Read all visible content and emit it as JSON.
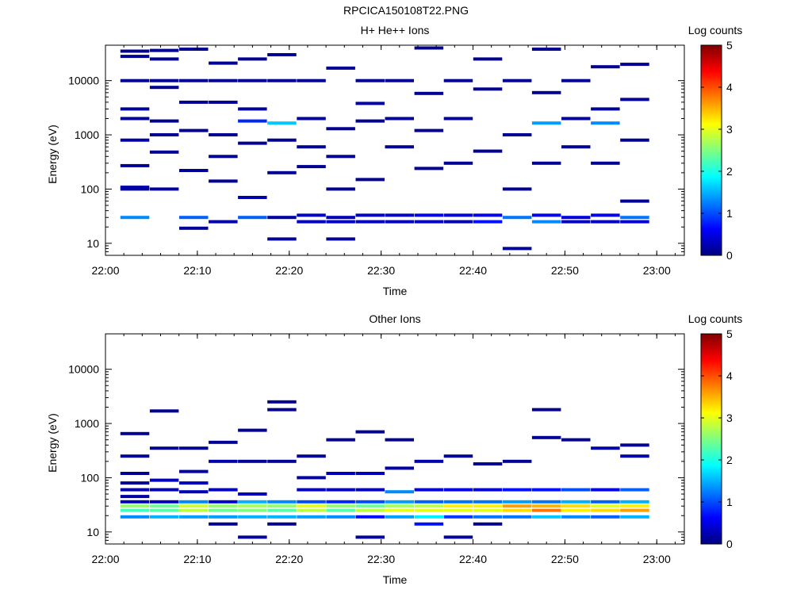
{
  "file_title": "RPCICA150108T22.PNG",
  "colorscale": {
    "stops": [
      "#00007f",
      "#0000ff",
      "#00ffff",
      "#ffff00",
      "#ff0000",
      "#7f0000"
    ]
  },
  "chart_data": [
    {
      "type": "heatmap",
      "title": "H+ He++ Ions",
      "xlabel": "Time",
      "ylabel": "Energy (eV)",
      "x_ticks": [
        "22:00",
        "22:10",
        "22:20",
        "22:30",
        "22:40",
        "22:50",
        "23:00"
      ],
      "x_range_minutes": [
        0,
        63
      ],
      "y_scale": "log",
      "y_range": [
        6,
        45000
      ],
      "y_ticks": [
        "10",
        "100",
        "1000",
        "10000"
      ],
      "colorbar": {
        "label": "Log counts",
        "ticks": [
          "0",
          "1",
          "2",
          "3",
          "4",
          "5"
        ],
        "range": [
          0,
          5
        ]
      },
      "columns_center_minutes": [
        3.2,
        6.4,
        9.6,
        12.8,
        16,
        19.2,
        22.4,
        25.6,
        28.8,
        32,
        35.2,
        38.4,
        41.6,
        44.8,
        48,
        51.2,
        54.4,
        57.6,
        60.8
      ],
      "cells": [
        [
          0,
          30,
          1.3
        ],
        [
          0,
          100,
          0.2
        ],
        [
          0,
          108,
          0.2
        ],
        [
          0,
          800,
          0.2
        ],
        [
          0,
          10000,
          0.1
        ],
        [
          0,
          3000,
          0.1
        ],
        [
          0,
          35000,
          0.1
        ],
        [
          0,
          270,
          0.1
        ],
        [
          0,
          2000,
          0.1
        ],
        [
          0,
          28000,
          0.1
        ],
        [
          1,
          480,
          0.1
        ],
        [
          1,
          1000,
          0.1
        ],
        [
          1,
          10000,
          0.1
        ],
        [
          1,
          7500,
          0.1
        ],
        [
          1,
          36000,
          0.1
        ],
        [
          1,
          100,
          0.2
        ],
        [
          1,
          25000,
          0.1
        ],
        [
          1,
          1800,
          0.1
        ],
        [
          2,
          30,
          1.1
        ],
        [
          2,
          19,
          0.1
        ],
        [
          2,
          220,
          0.1
        ],
        [
          2,
          4000,
          0.1
        ],
        [
          2,
          10000,
          0.1
        ],
        [
          2,
          1200,
          0.1
        ],
        [
          2,
          38000,
          0.1
        ],
        [
          3,
          25,
          0.2
        ],
        [
          3,
          140,
          0.1
        ],
        [
          3,
          1000,
          0.1
        ],
        [
          3,
          10000,
          0.1
        ],
        [
          3,
          21000,
          0.1
        ],
        [
          3,
          4000,
          0.1
        ],
        [
          3,
          400,
          0.1
        ],
        [
          4,
          30,
          1.1
        ],
        [
          4,
          1800,
          0.8
        ],
        [
          4,
          70,
          0.2
        ],
        [
          4,
          700,
          0.1
        ],
        [
          4,
          10000,
          0.1
        ],
        [
          4,
          25000,
          0.1
        ],
        [
          4,
          3000,
          0.1
        ],
        [
          5,
          12,
          0.1
        ],
        [
          5,
          30,
          0.2
        ],
        [
          5,
          1650,
          1.6
        ],
        [
          5,
          800,
          0.1
        ],
        [
          5,
          10000,
          0.1
        ],
        [
          5,
          200,
          0.1
        ],
        [
          5,
          30000,
          0.1
        ],
        [
          6,
          25,
          0.3
        ],
        [
          6,
          33,
          0.3
        ],
        [
          6,
          260,
          0.1
        ],
        [
          6,
          10000,
          0.1
        ],
        [
          6,
          2000,
          0.1
        ],
        [
          6,
          600,
          0.1
        ],
        [
          7,
          12,
          0.1
        ],
        [
          7,
          25,
          0.3
        ],
        [
          7,
          30,
          0.3
        ],
        [
          7,
          100,
          0.1
        ],
        [
          7,
          17000,
          0.1
        ],
        [
          7,
          1300,
          0.1
        ],
        [
          7,
          400,
          0.1
        ],
        [
          8,
          25,
          0.3
        ],
        [
          8,
          33,
          0.3
        ],
        [
          8,
          3800,
          0.2
        ],
        [
          8,
          150,
          0.1
        ],
        [
          8,
          10000,
          0.1
        ],
        [
          8,
          1800,
          0.1
        ],
        [
          9,
          25,
          0.3
        ],
        [
          9,
          33,
          0.3
        ],
        [
          9,
          600,
          0.1
        ],
        [
          9,
          2000,
          0.1
        ],
        [
          9,
          10000,
          0.1
        ],
        [
          10,
          25,
          0.3
        ],
        [
          10,
          33,
          0.5
        ],
        [
          10,
          5800,
          0.1
        ],
        [
          10,
          240,
          0.1
        ],
        [
          10,
          1200,
          0.1
        ],
        [
          10,
          40000,
          0.1
        ],
        [
          11,
          25,
          0.2
        ],
        [
          11,
          33,
          0.4
        ],
        [
          11,
          300,
          0.1
        ],
        [
          11,
          2000,
          0.1
        ],
        [
          11,
          10000,
          0.1
        ],
        [
          12,
          25,
          0.7
        ],
        [
          12,
          33,
          0.5
        ],
        [
          12,
          500,
          0.1
        ],
        [
          12,
          7000,
          0.1
        ],
        [
          12,
          25000,
          0.1
        ],
        [
          13,
          8,
          0.1
        ],
        [
          13,
          30,
          1.2
        ],
        [
          13,
          1000,
          0.1
        ],
        [
          13,
          10000,
          0.1
        ],
        [
          13,
          100,
          0.1
        ],
        [
          14,
          25,
          1.3
        ],
        [
          14,
          33,
          0.5
        ],
        [
          14,
          1650,
          1.4
        ],
        [
          14,
          300,
          0.1
        ],
        [
          14,
          6000,
          0.1
        ],
        [
          14,
          38000,
          0.1
        ],
        [
          15,
          25,
          0.3
        ],
        [
          15,
          30,
          0.5
        ],
        [
          15,
          2000,
          0.1
        ],
        [
          15,
          10000,
          0.1
        ],
        [
          15,
          600,
          0.1
        ],
        [
          16,
          25,
          0.3
        ],
        [
          16,
          33,
          0.5
        ],
        [
          16,
          1650,
          1.3
        ],
        [
          16,
          3000,
          0.1
        ],
        [
          16,
          18000,
          0.1
        ],
        [
          16,
          300,
          0.1
        ],
        [
          17,
          25,
          0.4
        ],
        [
          17,
          30,
          1.2
        ],
        [
          17,
          60,
          0.1
        ],
        [
          17,
          800,
          0.1
        ],
        [
          17,
          4500,
          0.1
        ],
        [
          17,
          20000,
          0.1
        ]
      ]
    },
    {
      "type": "heatmap",
      "title": "Other Ions",
      "xlabel": "Time",
      "ylabel": "Energy (eV)",
      "x_ticks": [
        "22:00",
        "22:10",
        "22:20",
        "22:30",
        "22:40",
        "22:50",
        "23:00"
      ],
      "x_range_minutes": [
        0,
        63
      ],
      "y_scale": "log",
      "y_range": [
        6,
        45000
      ],
      "y_ticks": [
        "10",
        "100",
        "1000",
        "10000"
      ],
      "colorbar": {
        "label": "Log counts",
        "ticks": [
          "0",
          "1",
          "2",
          "3",
          "4",
          "5"
        ],
        "range": [
          0,
          5
        ]
      },
      "columns_center_minutes": [
        3.2,
        6.4,
        9.6,
        12.8,
        16,
        19.2,
        22.4,
        25.6,
        28.8,
        32,
        35.2,
        38.4,
        41.6,
        44.8,
        48,
        51.2,
        54.4,
        57.6,
        60.8
      ],
      "cells": [
        [
          0,
          19,
          1.3
        ],
        [
          0,
          25,
          2.2
        ],
        [
          0,
          30,
          2.6
        ],
        [
          0,
          36,
          0.3
        ],
        [
          0,
          45,
          0.2
        ],
        [
          0,
          60,
          0.2
        ],
        [
          0,
          80,
          0.1
        ],
        [
          0,
          120,
          0.1
        ],
        [
          0,
          250,
          0.1
        ],
        [
          0,
          650,
          0.1
        ],
        [
          1,
          19,
          1.5
        ],
        [
          1,
          25,
          2.3
        ],
        [
          1,
          30,
          2.4
        ],
        [
          1,
          36,
          0.3
        ],
        [
          1,
          60,
          0.2
        ],
        [
          1,
          90,
          0.3
        ],
        [
          1,
          350,
          0.1
        ],
        [
          1,
          1700,
          0.1
        ],
        [
          2,
          19,
          1.4
        ],
        [
          2,
          25,
          2.8
        ],
        [
          2,
          30,
          2.9
        ],
        [
          2,
          36,
          1.3
        ],
        [
          2,
          55,
          0.3
        ],
        [
          2,
          80,
          0.3
        ],
        [
          2,
          130,
          0.2
        ],
        [
          2,
          350,
          0.1
        ],
        [
          3,
          14,
          0.1
        ],
        [
          3,
          19,
          1.4
        ],
        [
          3,
          25,
          2.4
        ],
        [
          3,
          30,
          2.6
        ],
        [
          3,
          36,
          0.4
        ],
        [
          3,
          60,
          0.3
        ],
        [
          3,
          200,
          0.2
        ],
        [
          3,
          450,
          0.1
        ],
        [
          4,
          8,
          0.1
        ],
        [
          4,
          19,
          1.5
        ],
        [
          4,
          25,
          2.5
        ],
        [
          4,
          30,
          2.7
        ],
        [
          4,
          36,
          1.5
        ],
        [
          4,
          50,
          0.3
        ],
        [
          4,
          200,
          0.1
        ],
        [
          4,
          750,
          0.1
        ],
        [
          5,
          14,
          0.1
        ],
        [
          5,
          19,
          1.5
        ],
        [
          5,
          25,
          2.3
        ],
        [
          5,
          30,
          2.6
        ],
        [
          5,
          36,
          1.3
        ],
        [
          5,
          200,
          0.1
        ],
        [
          5,
          2500,
          0.1
        ],
        [
          5,
          1800,
          0.1
        ],
        [
          6,
          19,
          1.4
        ],
        [
          6,
          25,
          2.8
        ],
        [
          6,
          30,
          3.0
        ],
        [
          6,
          36,
          1.0
        ],
        [
          6,
          60,
          0.3
        ],
        [
          6,
          100,
          0.2
        ],
        [
          6,
          250,
          0.1
        ],
        [
          7,
          19,
          1.3
        ],
        [
          7,
          25,
          2.3
        ],
        [
          7,
          30,
          2.6
        ],
        [
          7,
          36,
          0.8
        ],
        [
          7,
          60,
          0.3
        ],
        [
          7,
          120,
          0.3
        ],
        [
          7,
          500,
          0.1
        ],
        [
          8,
          8,
          0.1
        ],
        [
          8,
          19,
          0.7
        ],
        [
          8,
          25,
          2.8
        ],
        [
          8,
          30,
          2.4
        ],
        [
          8,
          36,
          1.0
        ],
        [
          8,
          60,
          0.3
        ],
        [
          8,
          120,
          0.3
        ],
        [
          8,
          700,
          0.1
        ],
        [
          9,
          19,
          1.4
        ],
        [
          9,
          25,
          3.0
        ],
        [
          9,
          30,
          2.7
        ],
        [
          9,
          36,
          1.4
        ],
        [
          9,
          55,
          1.3
        ],
        [
          9,
          150,
          0.2
        ],
        [
          9,
          500,
          0.1
        ],
        [
          10,
          14,
          0.7
        ],
        [
          10,
          19,
          1.8
        ],
        [
          10,
          25,
          3.0
        ],
        [
          10,
          30,
          2.8
        ],
        [
          10,
          36,
          1.1
        ],
        [
          10,
          60,
          0.4
        ],
        [
          10,
          200,
          0.2
        ],
        [
          11,
          8,
          0.1
        ],
        [
          11,
          19,
          0.9
        ],
        [
          11,
          25,
          3.0
        ],
        [
          11,
          30,
          3.2
        ],
        [
          11,
          36,
          1.2
        ],
        [
          11,
          60,
          0.5
        ],
        [
          11,
          250,
          0.1
        ],
        [
          12,
          14,
          0.1
        ],
        [
          12,
          19,
          1.2
        ],
        [
          12,
          25,
          3.0
        ],
        [
          12,
          30,
          3.2
        ],
        [
          12,
          36,
          1.2
        ],
        [
          12,
          60,
          0.4
        ],
        [
          12,
          180,
          0.1
        ],
        [
          13,
          19,
          1.2
        ],
        [
          13,
          25,
          3.3
        ],
        [
          13,
          30,
          3.6
        ],
        [
          13,
          36,
          1.4
        ],
        [
          13,
          60,
          0.7
        ],
        [
          13,
          200,
          0.1
        ],
        [
          14,
          19,
          1.6
        ],
        [
          14,
          25,
          3.8
        ],
        [
          14,
          30,
          3.5
        ],
        [
          14,
          36,
          1.2
        ],
        [
          14,
          60,
          0.7
        ],
        [
          14,
          550,
          0.1
        ],
        [
          14,
          1800,
          0.1
        ],
        [
          15,
          19,
          1.3
        ],
        [
          15,
          25,
          3.2
        ],
        [
          15,
          30,
          3.3
        ],
        [
          15,
          36,
          1.5
        ],
        [
          15,
          60,
          1.0
        ],
        [
          15,
          500,
          0.1
        ],
        [
          16,
          19,
          1.1
        ],
        [
          16,
          25,
          3.3
        ],
        [
          16,
          30,
          3.0
        ],
        [
          16,
          36,
          1.1
        ],
        [
          16,
          60,
          0.5
        ],
        [
          16,
          350,
          0.2
        ],
        [
          17,
          19,
          1.5
        ],
        [
          17,
          25,
          3.6
        ],
        [
          17,
          30,
          3.2
        ],
        [
          17,
          36,
          1.5
        ],
        [
          17,
          60,
          1.1
        ],
        [
          17,
          250,
          0.2
        ],
        [
          17,
          400,
          0.1
        ]
      ]
    }
  ]
}
